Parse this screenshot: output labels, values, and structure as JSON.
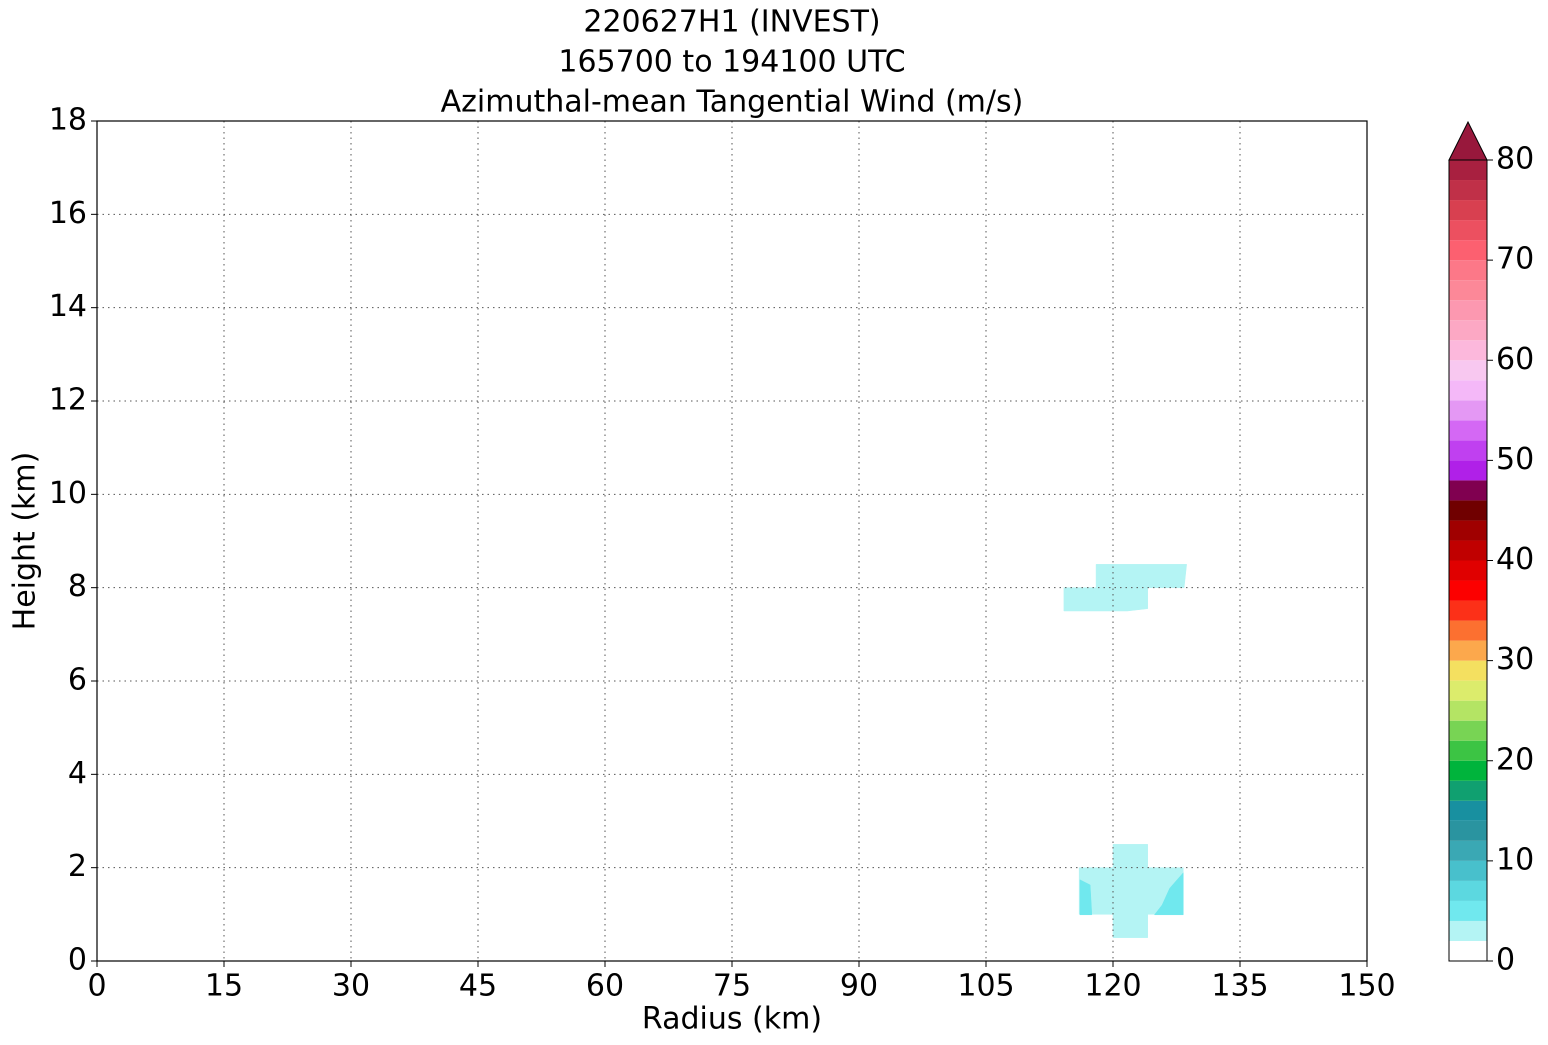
{
  "chart_data": {
    "type": "contourf",
    "title": [
      "220627H1 (INVEST)",
      "165700 to 194100 UTC",
      "Azimuthal-mean Tangential Wind (m/s)"
    ],
    "xlabel": "Radius (km)",
    "ylabel": "Height (km)",
    "xlim": [
      0,
      150
    ],
    "ylim": [
      0,
      18
    ],
    "xticks": [
      0,
      15,
      30,
      45,
      60,
      75,
      90,
      105,
      120,
      135,
      150
    ],
    "yticks": [
      0,
      2,
      4,
      6,
      8,
      10,
      12,
      14,
      16,
      18
    ],
    "grid": true,
    "levels": [
      0,
      2,
      4,
      6,
      8,
      10,
      12,
      14,
      16,
      18,
      20,
      22,
      24,
      26,
      28,
      30,
      32,
      34,
      36,
      38,
      40,
      42,
      44,
      46,
      48,
      50,
      52,
      54,
      56,
      58,
      60,
      62,
      64,
      66,
      68,
      70,
      72,
      74,
      76,
      78,
      80
    ],
    "colors": [
      "#ffffff",
      "#b4f4f4",
      "#70e8ee",
      "#5cd8e0",
      "#48c0cc",
      "#3aa8b4",
      "#2a94a0",
      "#1890a0",
      "#10a070",
      "#00b43c",
      "#3cc444",
      "#78d454",
      "#b4e464",
      "#dcec6c",
      "#f4e060",
      "#fca84c",
      "#fc7030",
      "#fc3018",
      "#fc0000",
      "#e00000",
      "#c00000",
      "#a00000",
      "#700000",
      "#800050",
      "#b020e8",
      "#c040f0",
      "#d468f4",
      "#e498f4",
      "#f4b8f8",
      "#f8c8f0",
      "#fcb8dc",
      "#fca8c4",
      "#fc98b0",
      "#fc8898",
      "#fc7888",
      "#fc6070",
      "#ec5060",
      "#d84050",
      "#c03048",
      "#a82040"
    ],
    "extend_color": "#98183c",
    "cbar_ticks": [
      0,
      10,
      20,
      30,
      40,
      50,
      60,
      70,
      80
    ],
    "regions": [
      {
        "level": 2,
        "points": [
          [
            118,
            8.5
          ],
          [
            128.7,
            8.5
          ],
          [
            128.4,
            8
          ],
          [
            124.1,
            8
          ],
          [
            124.1,
            7.55
          ],
          [
            121.7,
            7.5
          ],
          [
            114.2,
            7.5
          ],
          [
            114.2,
            8
          ],
          [
            118,
            8
          ]
        ]
      },
      {
        "level": 2,
        "points": [
          [
            120,
            2.5
          ],
          [
            124.1,
            2.5
          ],
          [
            124.1,
            2
          ],
          [
            128.3,
            2
          ],
          [
            128.3,
            1
          ],
          [
            124.1,
            1
          ],
          [
            124.1,
            0.5
          ],
          [
            120,
            0.5
          ],
          [
            120,
            1
          ],
          [
            116,
            1
          ],
          [
            116,
            2
          ],
          [
            120,
            2
          ]
        ]
      },
      {
        "level": 4,
        "points": [
          [
            116.1,
            1.74
          ],
          [
            117.3,
            1.63
          ],
          [
            117.5,
            0.99
          ],
          [
            116.1,
            0.99
          ]
        ]
      },
      {
        "level": 4,
        "points": [
          [
            128.3,
            1.89
          ],
          [
            128.3,
            0.99
          ],
          [
            124.9,
            0.99
          ],
          [
            125.8,
            1.2
          ],
          [
            126.7,
            1.56
          ]
        ]
      }
    ]
  }
}
